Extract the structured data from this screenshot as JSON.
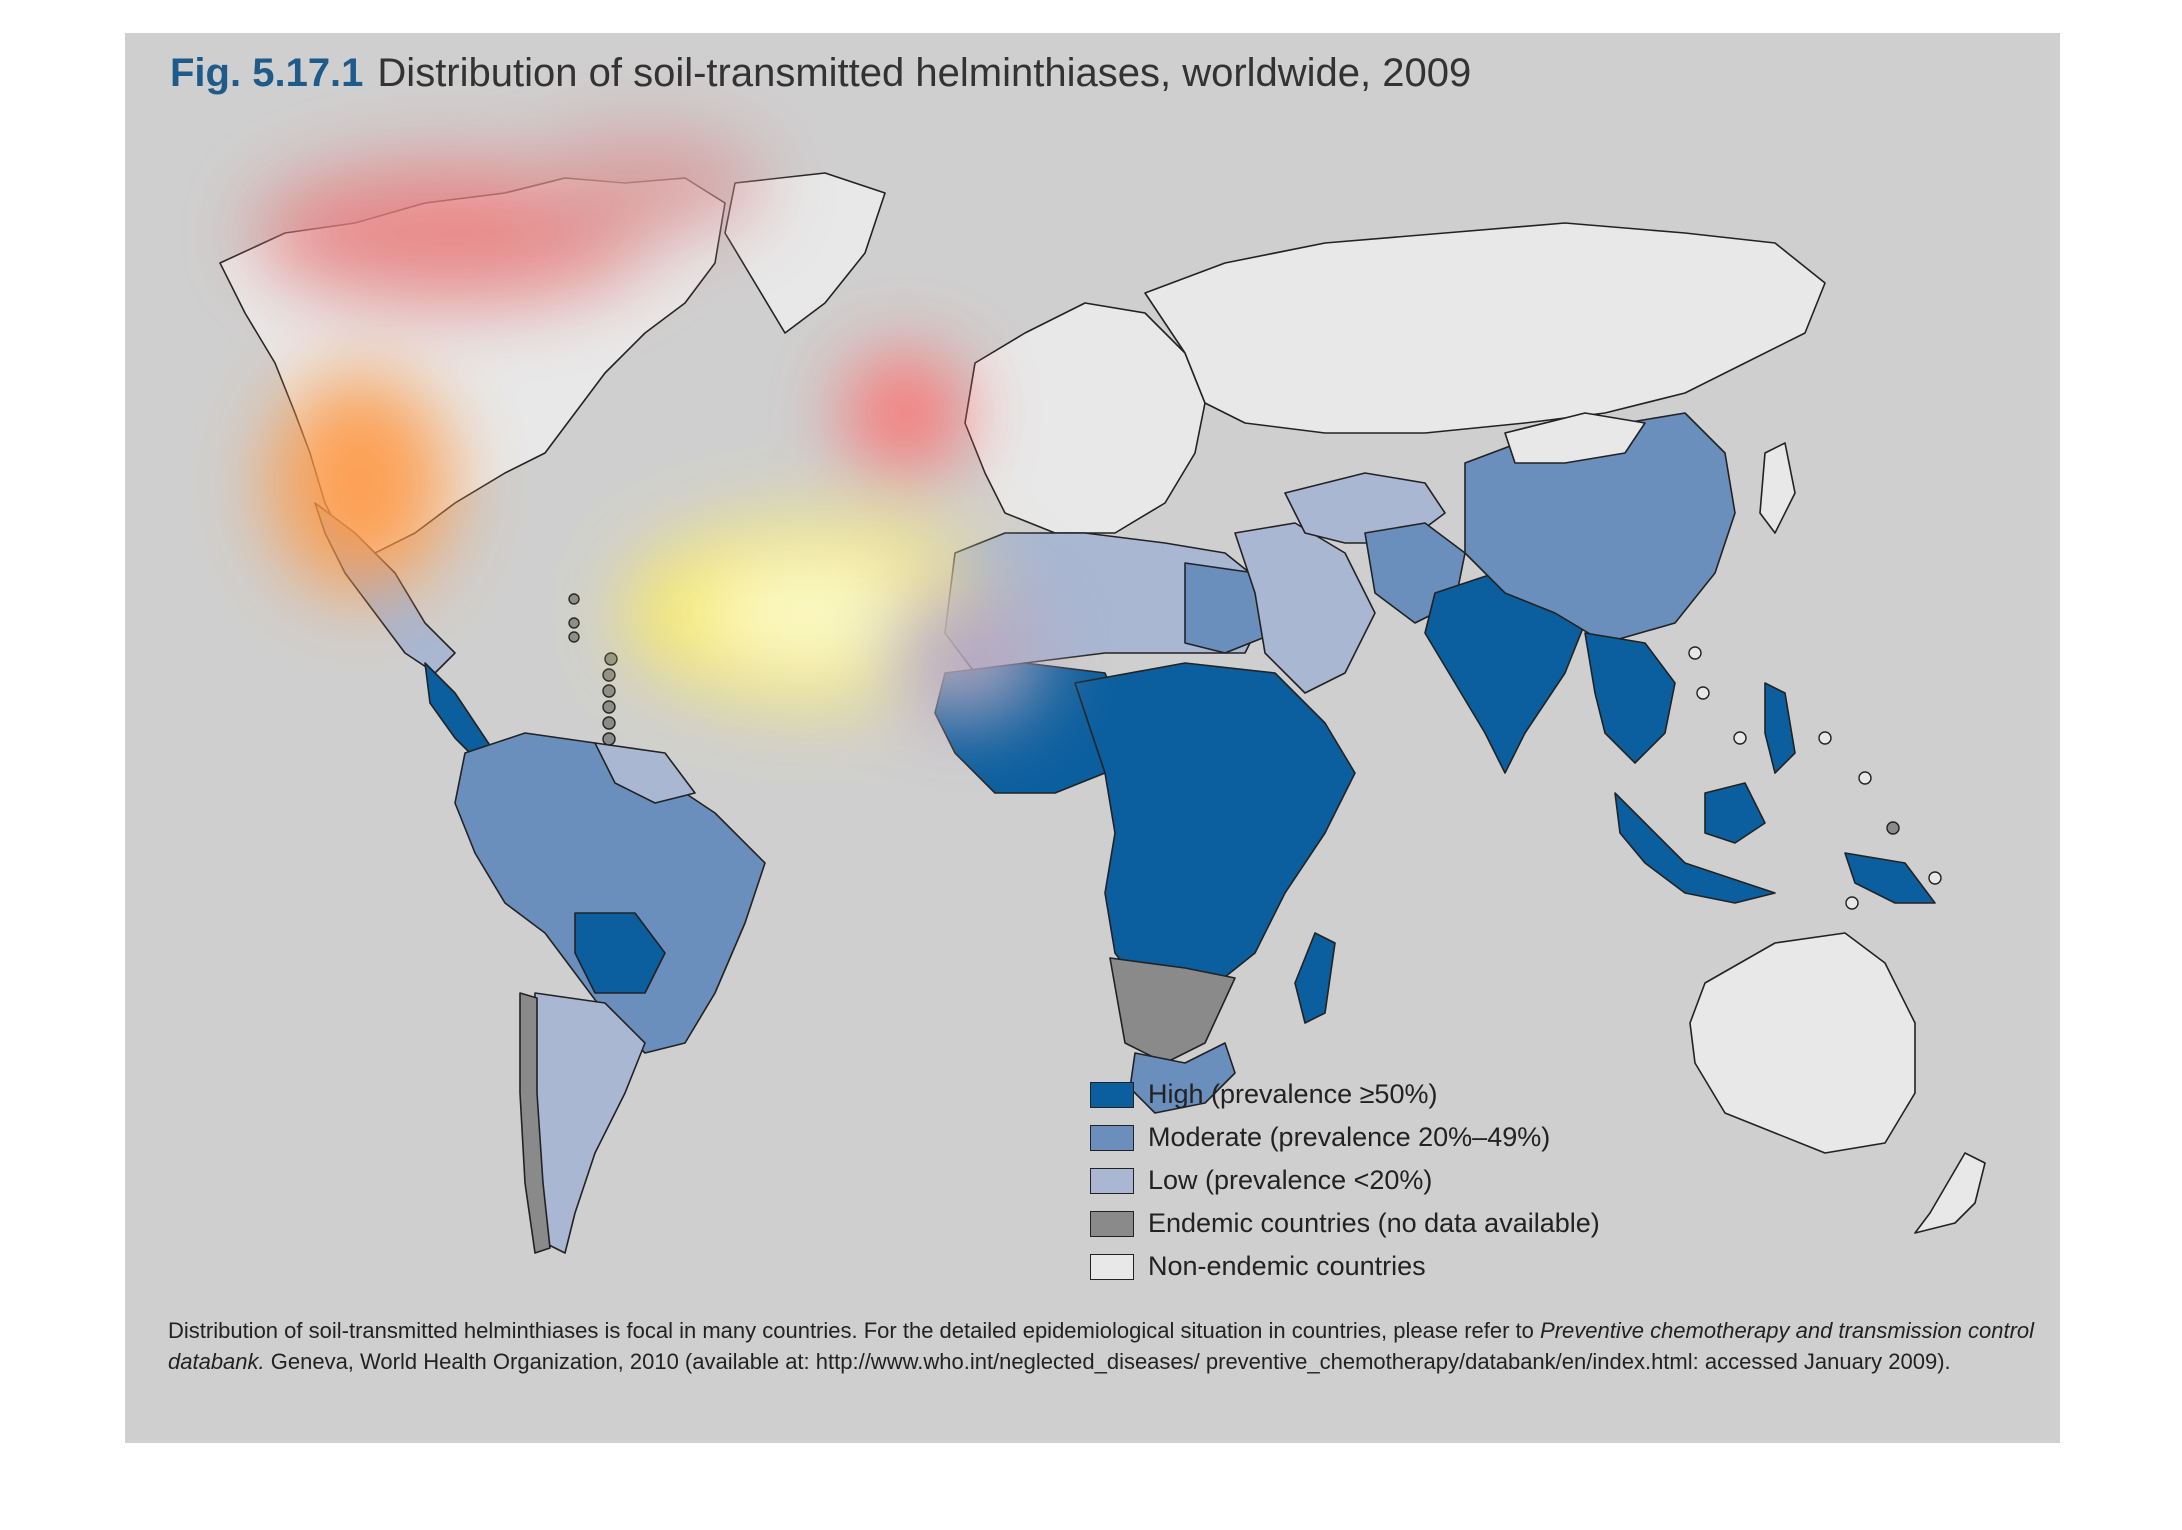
{
  "title": {
    "number": "Fig. 5.17.1",
    "text": "Distribution of soil-transmitted helminthiases, worldwide, 2009"
  },
  "colors": {
    "high": "#0b5f9e",
    "moderate": "#6a8fbd",
    "low": "#a9b7d2",
    "endemic": "#8a8a8a",
    "non_endemic": "#e8e8e8",
    "panel_bg": "#cfcfcf",
    "title_accent": "#1e5a8a"
  },
  "legend": [
    {
      "key": "high",
      "label": "High (prevalence ≥50%)"
    },
    {
      "key": "moderate",
      "label": "Moderate (prevalence 20%–49%)"
    },
    {
      "key": "low",
      "label": "Low (prevalence <20%)"
    },
    {
      "key": "endemic",
      "label": "Endemic countries (no data available)"
    },
    {
      "key": "non_endemic",
      "label": "Non-endemic countries"
    }
  ],
  "note": {
    "part1": "Distribution of soil-transmitted helminthiases is focal in many countries. For the detailed epidemiological situation in countries, please refer to ",
    "italic": "Preventive chemotherapy and transmission control databank.",
    "part2": " Geneva, World Health Organization, 2010 (available at: http://www.who.int/neglected_diseases/ preventive_chemotherapy/databank/en/index.html: accessed January 2009)."
  },
  "regions": [
    {
      "name": "north-america",
      "category": "non_endemic"
    },
    {
      "name": "greenland",
      "category": "non_endemic"
    },
    {
      "name": "mexico",
      "category": "low"
    },
    {
      "name": "central-america",
      "category": "high"
    },
    {
      "name": "south-america-north",
      "category": "moderate"
    },
    {
      "name": "guianas",
      "category": "low"
    },
    {
      "name": "bolivia",
      "category": "high"
    },
    {
      "name": "argentina",
      "category": "low"
    },
    {
      "name": "chile",
      "category": "endemic"
    },
    {
      "name": "europe",
      "category": "non_endemic"
    },
    {
      "name": "russia",
      "category": "non_endemic"
    },
    {
      "name": "north-africa",
      "category": "low"
    },
    {
      "name": "egypt",
      "category": "moderate"
    },
    {
      "name": "west-africa",
      "category": "high"
    },
    {
      "name": "central-east-africa",
      "category": "high"
    },
    {
      "name": "southern-africa-endemic",
      "category": "endemic"
    },
    {
      "name": "south-africa",
      "category": "moderate"
    },
    {
      "name": "madagascar",
      "category": "high"
    },
    {
      "name": "middle-east",
      "category": "low"
    },
    {
      "name": "central-asia",
      "category": "low"
    },
    {
      "name": "iran-pakistan",
      "category": "moderate"
    },
    {
      "name": "india-region",
      "category": "high"
    },
    {
      "name": "china",
      "category": "moderate"
    },
    {
      "name": "mongolia",
      "category": "non_endemic"
    },
    {
      "name": "southeast-asia",
      "category": "high"
    },
    {
      "name": "indonesia",
      "category": "high"
    },
    {
      "name": "borneo",
      "category": "high"
    },
    {
      "name": "papua",
      "category": "high"
    },
    {
      "name": "philippines",
      "category": "high"
    },
    {
      "name": "japan",
      "category": "non_endemic"
    },
    {
      "name": "australia",
      "category": "non_endemic"
    },
    {
      "name": "new-zealand",
      "category": "non_endemic"
    }
  ]
}
